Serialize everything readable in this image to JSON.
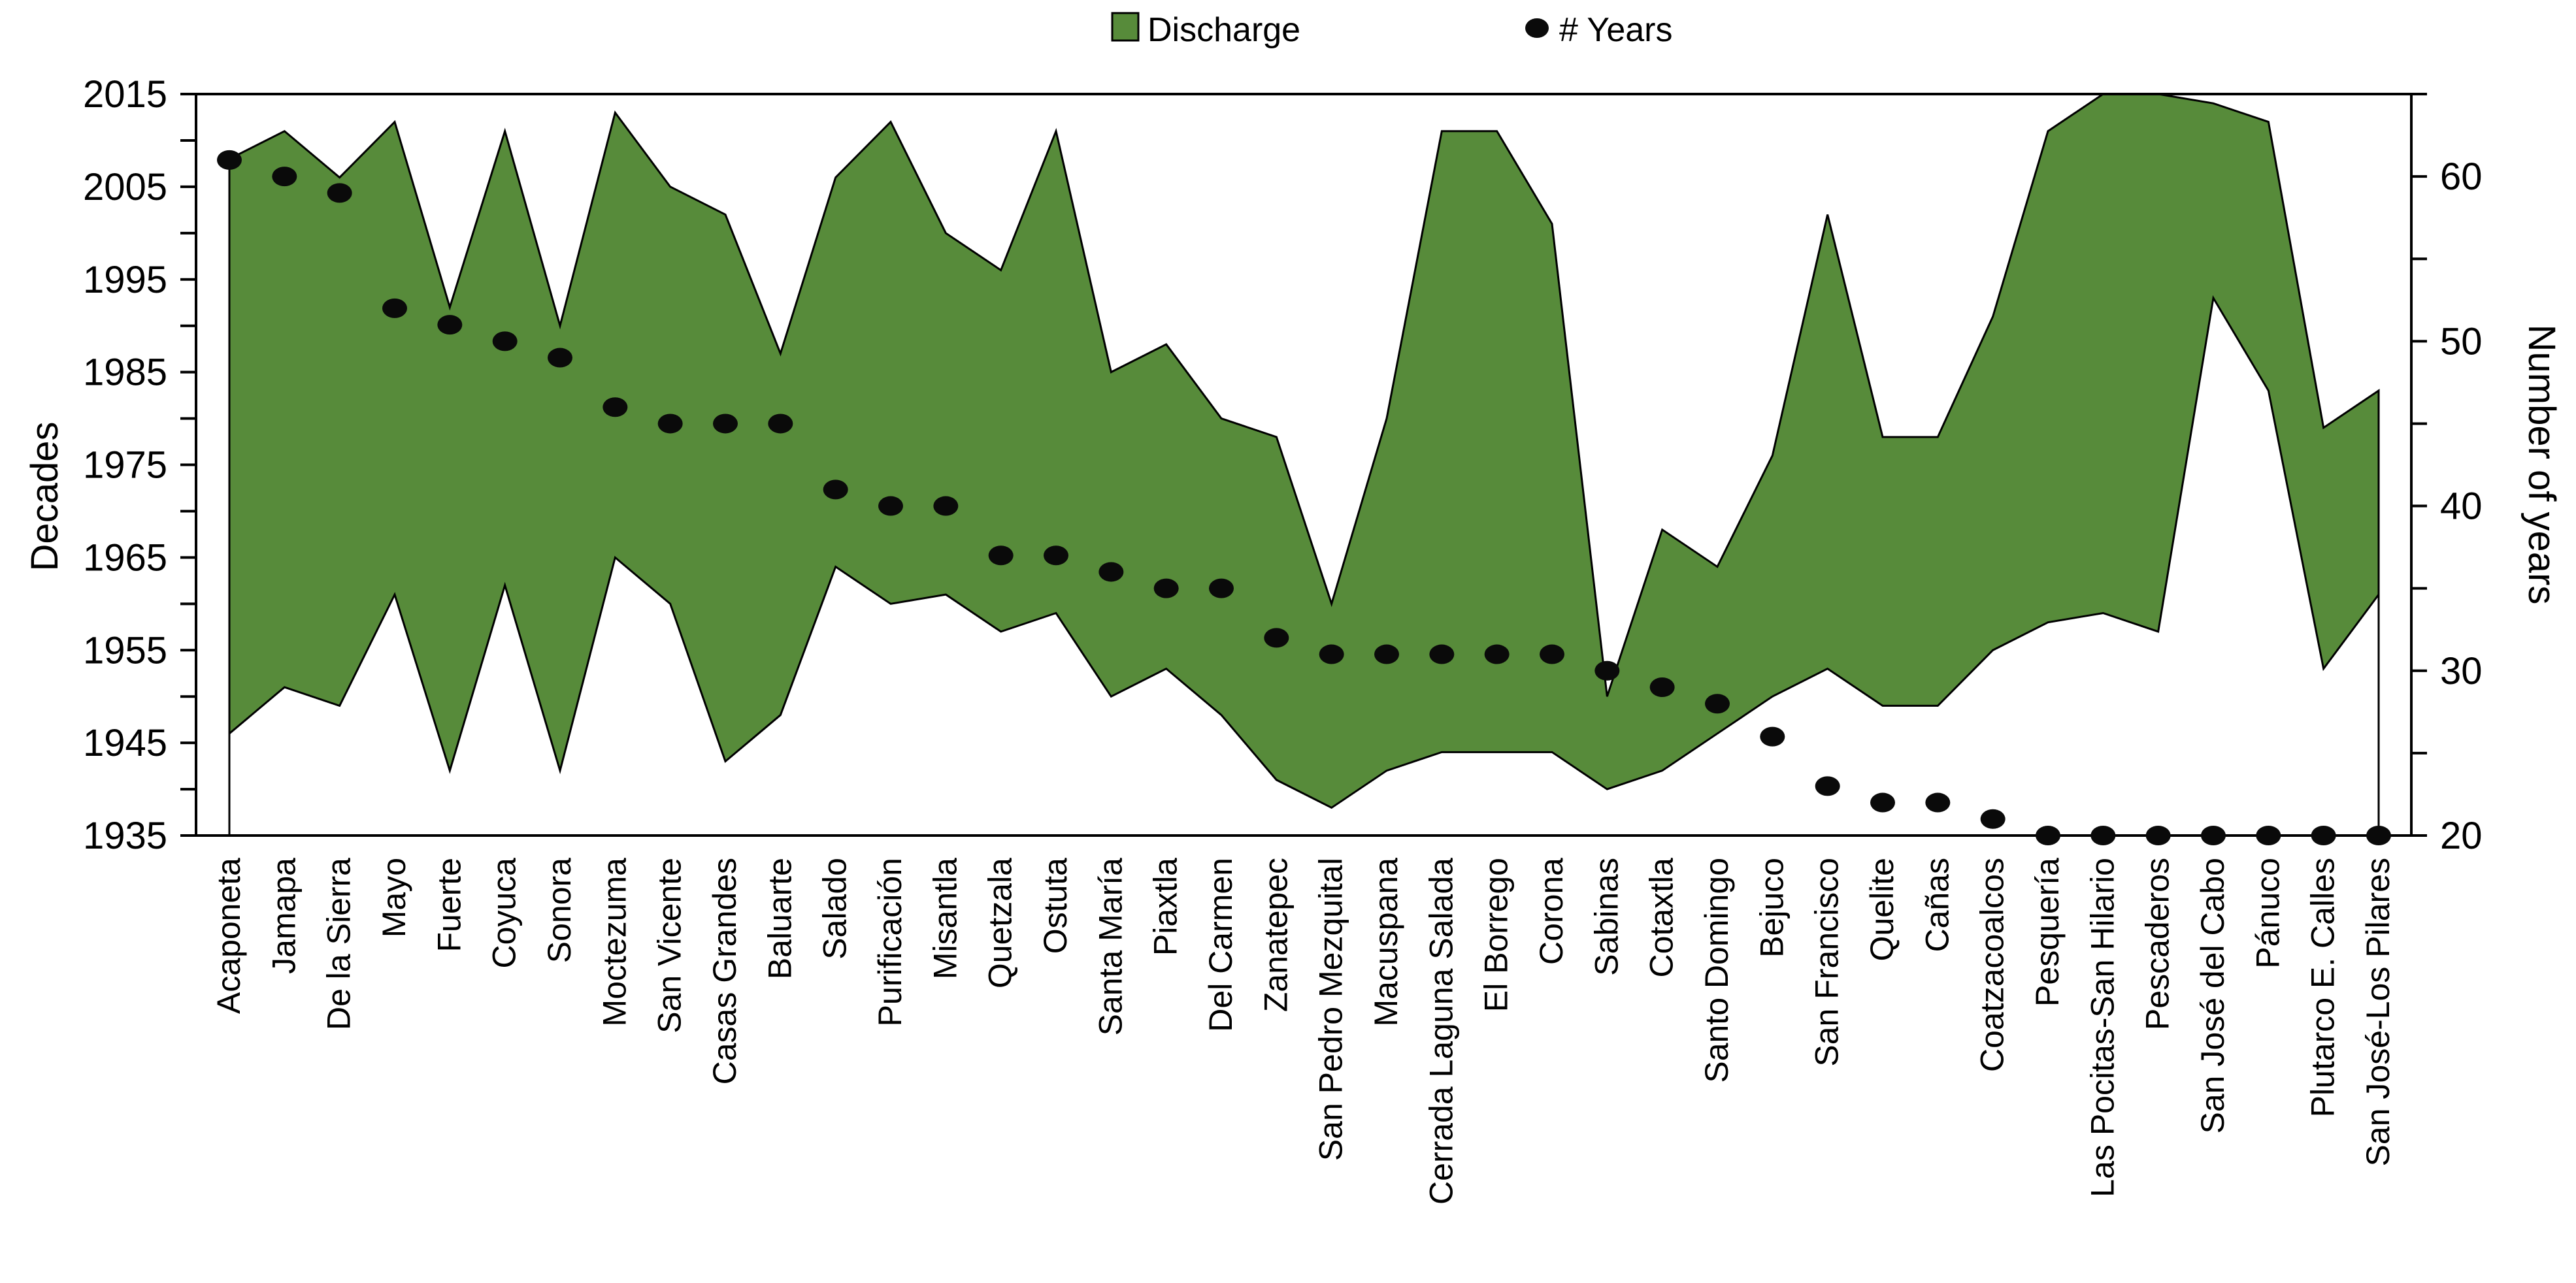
{
  "legend": {
    "discharge_label": "Discharge",
    "years_label": "# Years"
  },
  "colors": {
    "discharge_green": "#578b3a",
    "dot_black": "#0a0a0a",
    "axis_black": "#000000",
    "background": "#ffffff"
  },
  "left_axis": {
    "title": "Decades",
    "min": 1935,
    "max": 2015,
    "major_step": 10,
    "minor_step": 5,
    "tick_labels": [
      "2015",
      "2005",
      "1995",
      "1985",
      "1975",
      "1965",
      "1955",
      "1945",
      "1935"
    ]
  },
  "right_axis": {
    "title": "Number of years",
    "min": 20,
    "max": 65,
    "major_step": 10,
    "minor_step": 5,
    "tick_labels": [
      "60",
      "50",
      "40",
      "30",
      "20"
    ]
  },
  "chart_data": {
    "type": "area+scatter combo",
    "title": "",
    "xlabel": "",
    "ylabel_left": "Decades",
    "ylabel_right": "Number of years",
    "ylim_left": [
      1935,
      2015
    ],
    "ylim_right": [
      20,
      65
    ],
    "grid": false,
    "legend_position": "top-center",
    "series": [
      {
        "name": "Discharge",
        "type": "area-band",
        "axis": "left",
        "encoding": "start_year to end_year"
      },
      {
        "name": "# Years",
        "type": "scatter",
        "axis": "right",
        "encoding": "n_years"
      }
    ],
    "categories": [
      {
        "name": "Acaponeta",
        "start": 1946,
        "end": 2008,
        "years": 61
      },
      {
        "name": "Jamapa",
        "start": 1951,
        "end": 2011,
        "years": 60
      },
      {
        "name": "De la Sierra",
        "start": 1949,
        "end": 2006,
        "years": 59
      },
      {
        "name": "Mayo",
        "start": 1961,
        "end": 2012,
        "years": 52
      },
      {
        "name": "Fuerte",
        "start": 1942,
        "end": 1992,
        "years": 51
      },
      {
        "name": "Coyuca",
        "start": 1962,
        "end": 2011,
        "years": 50
      },
      {
        "name": "Sonora",
        "start": 1942,
        "end": 1990,
        "years": 49
      },
      {
        "name": "Moctezuma",
        "start": 1965,
        "end": 2013,
        "years": 46
      },
      {
        "name": "San Vicente",
        "start": 1960,
        "end": 2005,
        "years": 45
      },
      {
        "name": "Casas Grandes",
        "start": 1943,
        "end": 2002,
        "years": 45
      },
      {
        "name": "Baluarte",
        "start": 1948,
        "end": 1987,
        "years": 45
      },
      {
        "name": "Salado",
        "start": 1964,
        "end": 2006,
        "years": 41
      },
      {
        "name": "Purificación",
        "start": 1960,
        "end": 2012,
        "years": 40
      },
      {
        "name": "Misantla",
        "start": 1961,
        "end": 2000,
        "years": 40
      },
      {
        "name": "Quetzala",
        "start": 1957,
        "end": 1996,
        "years": 37
      },
      {
        "name": "Ostuta",
        "start": 1959,
        "end": 2011,
        "years": 37
      },
      {
        "name": "Santa María",
        "start": 1950,
        "end": 1985,
        "years": 36
      },
      {
        "name": "Piaxtla",
        "start": 1953,
        "end": 1988,
        "years": 35
      },
      {
        "name": "Del Carmen",
        "start": 1948,
        "end": 1980,
        "years": 35
      },
      {
        "name": "Zanatepec",
        "start": 1941,
        "end": 1978,
        "years": 32
      },
      {
        "name": "San Pedro Mezquital",
        "start": 1938,
        "end": 1960,
        "years": 31
      },
      {
        "name": "Macuspana",
        "start": 1942,
        "end": 1980,
        "years": 31
      },
      {
        "name": "Cerrada Laguna Salada",
        "start": 1944,
        "end": 2011,
        "years": 31
      },
      {
        "name": "El Borrego",
        "start": 1944,
        "end": 2011,
        "years": 31
      },
      {
        "name": "Corona",
        "start": 1944,
        "end": 2001,
        "years": 31
      },
      {
        "name": "Sabinas",
        "start": 1940,
        "end": 1950,
        "years": 30
      },
      {
        "name": "Cotaxtla",
        "start": 1942,
        "end": 1968,
        "years": 29
      },
      {
        "name": "Santo Domingo",
        "start": 1946,
        "end": 1964,
        "years": 28
      },
      {
        "name": "Bejuco",
        "start": 1950,
        "end": 1976,
        "years": 26
      },
      {
        "name": "San Francisco",
        "start": 1953,
        "end": 2002,
        "years": 23
      },
      {
        "name": "Quelite",
        "start": 1949,
        "end": 1978,
        "years": 22
      },
      {
        "name": "Cañas",
        "start": 1949,
        "end": 1978,
        "years": 22
      },
      {
        "name": "Coatzacoalcos",
        "start": 1955,
        "end": 1991,
        "years": 21
      },
      {
        "name": "Pesquería",
        "start": 1958,
        "end": 2011,
        "years": 20
      },
      {
        "name": "Las Pocitas-San Hilario",
        "start": 1959,
        "end": 2015,
        "years": 20
      },
      {
        "name": "Pescaderos",
        "start": 1957,
        "end": 2015,
        "years": 20
      },
      {
        "name": "San José del Cabo",
        "start": 1993,
        "end": 2014,
        "years": 20
      },
      {
        "name": "Pánuco",
        "start": 1983,
        "end": 2012,
        "years": 20
      },
      {
        "name": "Plutarco E. Calles",
        "start": 1953,
        "end": 1979,
        "years": 20
      },
      {
        "name": "San José-Los Pilares",
        "start": 1961,
        "end": 1983,
        "years": 20
      }
    ]
  }
}
